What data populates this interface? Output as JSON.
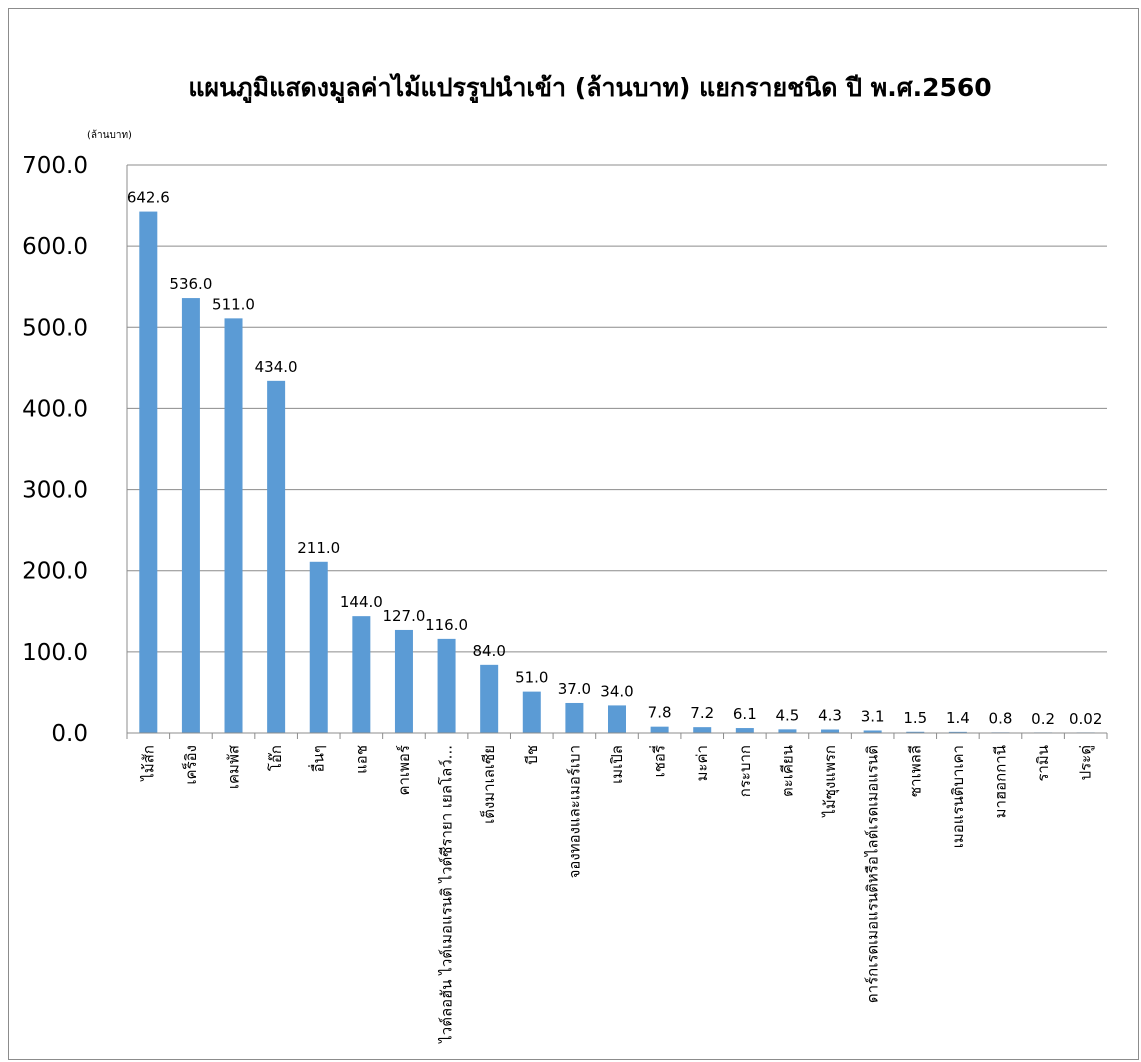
{
  "chart_data": {
    "type": "bar",
    "title": "แผนภูมิแสดงมูลค่าไม้แปรรูปนำเข้า (ล้านบาท) แยกรายชนิด ปี พ.ศ.2560",
    "unit_label": "(ล้านบาท)",
    "ylim": [
      0,
      700
    ],
    "yticks": [
      "0.0",
      "100.0",
      "200.0",
      "300.0",
      "400.0",
      "500.0",
      "600.0",
      "700.0"
    ],
    "grid": true,
    "legend": "none",
    "bar_color": "#5b9bd5",
    "categories": [
      "ไม้สัก",
      "เคร็อิง",
      "เคมพัส",
      "โอ๊ก",
      "อื่นๆ",
      "แอช",
      "คาเพอร์",
      "ไวต์ลอฮัน ไวต์เมอแรนติ ไวต์ซีรายา เยลโลว์...",
      "เต็งมาเลเซีย",
      "บีช",
      "จองทองและเมอร์เบา",
      "เมเปิล",
      "เชอรี่",
      "มะค่า",
      "กระบาก",
      "ตะเคียน",
      "ไม้ซุงแพรก",
      "ดาร์กเรดเมอแรนติหรือไลต์เรดเมอแรนติ",
      "ซาเพลลี",
      "เมอแรนติบาเคา",
      "มาฮอกกานี",
      "รามิน",
      "ประดู่"
    ],
    "values": [
      642.6,
      536.0,
      511.0,
      434.0,
      211.0,
      144.0,
      127.0,
      116.0,
      84.0,
      51.0,
      37.0,
      34.0,
      7.8,
      7.2,
      6.1,
      4.5,
      4.3,
      3.1,
      1.5,
      1.4,
      0.8,
      0.2,
      0.02
    ],
    "value_labels": [
      "642.6",
      "536.0",
      "511.0",
      "434.0",
      "211.0",
      "144.0",
      "127.0",
      "116.0",
      "84.0",
      "51.0",
      "37.0",
      "34.0",
      "7.8",
      "7.2",
      "6.1",
      "4.5",
      "4.3",
      "3.1",
      "1.5",
      "1.4",
      "0.8",
      "0.2",
      "0.02"
    ]
  }
}
